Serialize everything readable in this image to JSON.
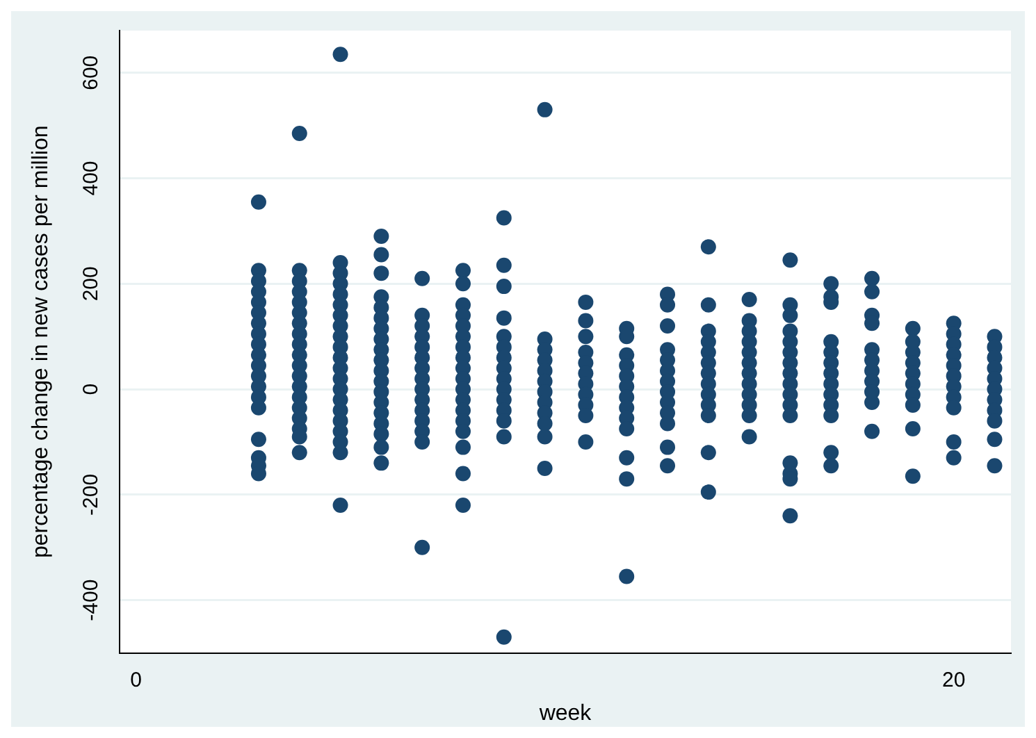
{
  "chart_data": {
    "type": "scatter",
    "xlabel": "week",
    "ylabel": "percentage change in new cases per million",
    "xlim": [
      -0.4,
      21.4
    ],
    "ylim": [
      -500,
      680
    ],
    "xticks": [
      0,
      20
    ],
    "yticks": [
      -400,
      -200,
      0,
      200,
      400,
      600
    ],
    "grid": "y",
    "legend": false,
    "marker": "circle",
    "series": [
      {
        "color": "#1a476f",
        "x": [
          3,
          3,
          3,
          3,
          3,
          3,
          3,
          3,
          3,
          3,
          3,
          3,
          3,
          3,
          3,
          3,
          3,
          3,
          3,
          4,
          4,
          4,
          4,
          4,
          4,
          4,
          4,
          4,
          4,
          4,
          4,
          4,
          4,
          4,
          4,
          4,
          4,
          4,
          5,
          5,
          5,
          5,
          5,
          5,
          5,
          5,
          5,
          5,
          5,
          5,
          5,
          5,
          5,
          5,
          5,
          5,
          5,
          5,
          5,
          6,
          6,
          6,
          6,
          6,
          6,
          6,
          6,
          6,
          6,
          6,
          6,
          6,
          6,
          6,
          6,
          6,
          6,
          6,
          7,
          7,
          7,
          7,
          7,
          7,
          7,
          7,
          7,
          7,
          7,
          7,
          7,
          7,
          7,
          8,
          8,
          8,
          8,
          8,
          8,
          8,
          8,
          8,
          8,
          8,
          8,
          8,
          8,
          8,
          8,
          8,
          8,
          9,
          9,
          9,
          9,
          9,
          9,
          9,
          9,
          9,
          9,
          9,
          9,
          9,
          9,
          9,
          10,
          10,
          10,
          10,
          10,
          10,
          10,
          10,
          10,
          10,
          10,
          10,
          11,
          11,
          11,
          11,
          11,
          11,
          11,
          11,
          11,
          11,
          11,
          12,
          12,
          12,
          12,
          12,
          12,
          12,
          12,
          12,
          12,
          12,
          12,
          12,
          13,
          13,
          13,
          13,
          13,
          13,
          13,
          13,
          13,
          13,
          13,
          13,
          13,
          14,
          14,
          14,
          14,
          14,
          14,
          14,
          14,
          14,
          14,
          14,
          14,
          14,
          15,
          15,
          15,
          15,
          15,
          15,
          15,
          15,
          15,
          15,
          15,
          15,
          16,
          16,
          16,
          16,
          16,
          16,
          16,
          16,
          16,
          16,
          16,
          16,
          16,
          16,
          16,
          16,
          17,
          17,
          17,
          17,
          17,
          17,
          17,
          17,
          17,
          17,
          17,
          17,
          17,
          18,
          18,
          18,
          18,
          18,
          18,
          18,
          18,
          18,
          18,
          18,
          19,
          19,
          19,
          19,
          19,
          19,
          19,
          19,
          19,
          19,
          20,
          20,
          20,
          20,
          20,
          20,
          20,
          20,
          20,
          20,
          20,
          21,
          21,
          21,
          21,
          21,
          21,
          21,
          21,
          21,
          21,
          21
        ],
        "values": [
          355,
          225,
          205,
          185,
          165,
          145,
          125,
          105,
          85,
          65,
          45,
          25,
          5,
          -15,
          -35,
          -95,
          -130,
          -145,
          -160,
          485,
          225,
          205,
          185,
          165,
          145,
          125,
          105,
          85,
          65,
          45,
          25,
          5,
          -15,
          -35,
          -55,
          -75,
          -90,
          -120,
          635,
          240,
          220,
          200,
          180,
          160,
          140,
          120,
          100,
          80,
          60,
          40,
          20,
          0,
          -20,
          -40,
          -60,
          -80,
          -100,
          -120,
          -220,
          290,
          255,
          220,
          175,
          155,
          135,
          115,
          95,
          75,
          55,
          35,
          15,
          -5,
          -25,
          -45,
          -65,
          -85,
          -110,
          -140,
          210,
          140,
          120,
          100,
          80,
          60,
          40,
          20,
          0,
          -20,
          -40,
          -60,
          -80,
          -100,
          -300,
          225,
          200,
          160,
          140,
          120,
          100,
          80,
          60,
          40,
          20,
          0,
          -20,
          -40,
          -60,
          -80,
          -110,
          -160,
          -220,
          325,
          235,
          195,
          135,
          100,
          80,
          60,
          40,
          20,
          0,
          -20,
          -40,
          -60,
          -90,
          -470,
          530,
          95,
          75,
          55,
          35,
          15,
          -5,
          -25,
          -45,
          -65,
          -90,
          -150,
          165,
          130,
          100,
          70,
          50,
          30,
          10,
          -10,
          -30,
          -50,
          -100,
          115,
          100,
          65,
          45,
          25,
          5,
          -15,
          -35,
          -55,
          -75,
          -130,
          -170,
          -355,
          180,
          160,
          120,
          75,
          55,
          35,
          15,
          -5,
          -25,
          -45,
          -65,
          -110,
          -145,
          270,
          160,
          110,
          90,
          70,
          50,
          30,
          10,
          -10,
          -30,
          -50,
          -120,
          -195,
          170,
          130,
          110,
          90,
          70,
          50,
          30,
          10,
          -10,
          -30,
          -50,
          -90,
          245,
          160,
          140,
          110,
          90,
          70,
          50,
          30,
          10,
          -10,
          -30,
          -50,
          -140,
          -160,
          -170,
          -240,
          200,
          175,
          165,
          90,
          70,
          50,
          30,
          10,
          -10,
          -30,
          -50,
          -120,
          -145,
          210,
          185,
          140,
          125,
          75,
          55,
          35,
          15,
          -5,
          -25,
          -80,
          115,
          90,
          70,
          50,
          30,
          10,
          -10,
          -30,
          -75,
          -165,
          125,
          105,
          85,
          65,
          45,
          25,
          5,
          -15,
          -35,
          -100,
          -130,
          100,
          80,
          60,
          40,
          20,
          0,
          -20,
          -40,
          -60,
          -95,
          -145
        ]
      }
    ]
  }
}
